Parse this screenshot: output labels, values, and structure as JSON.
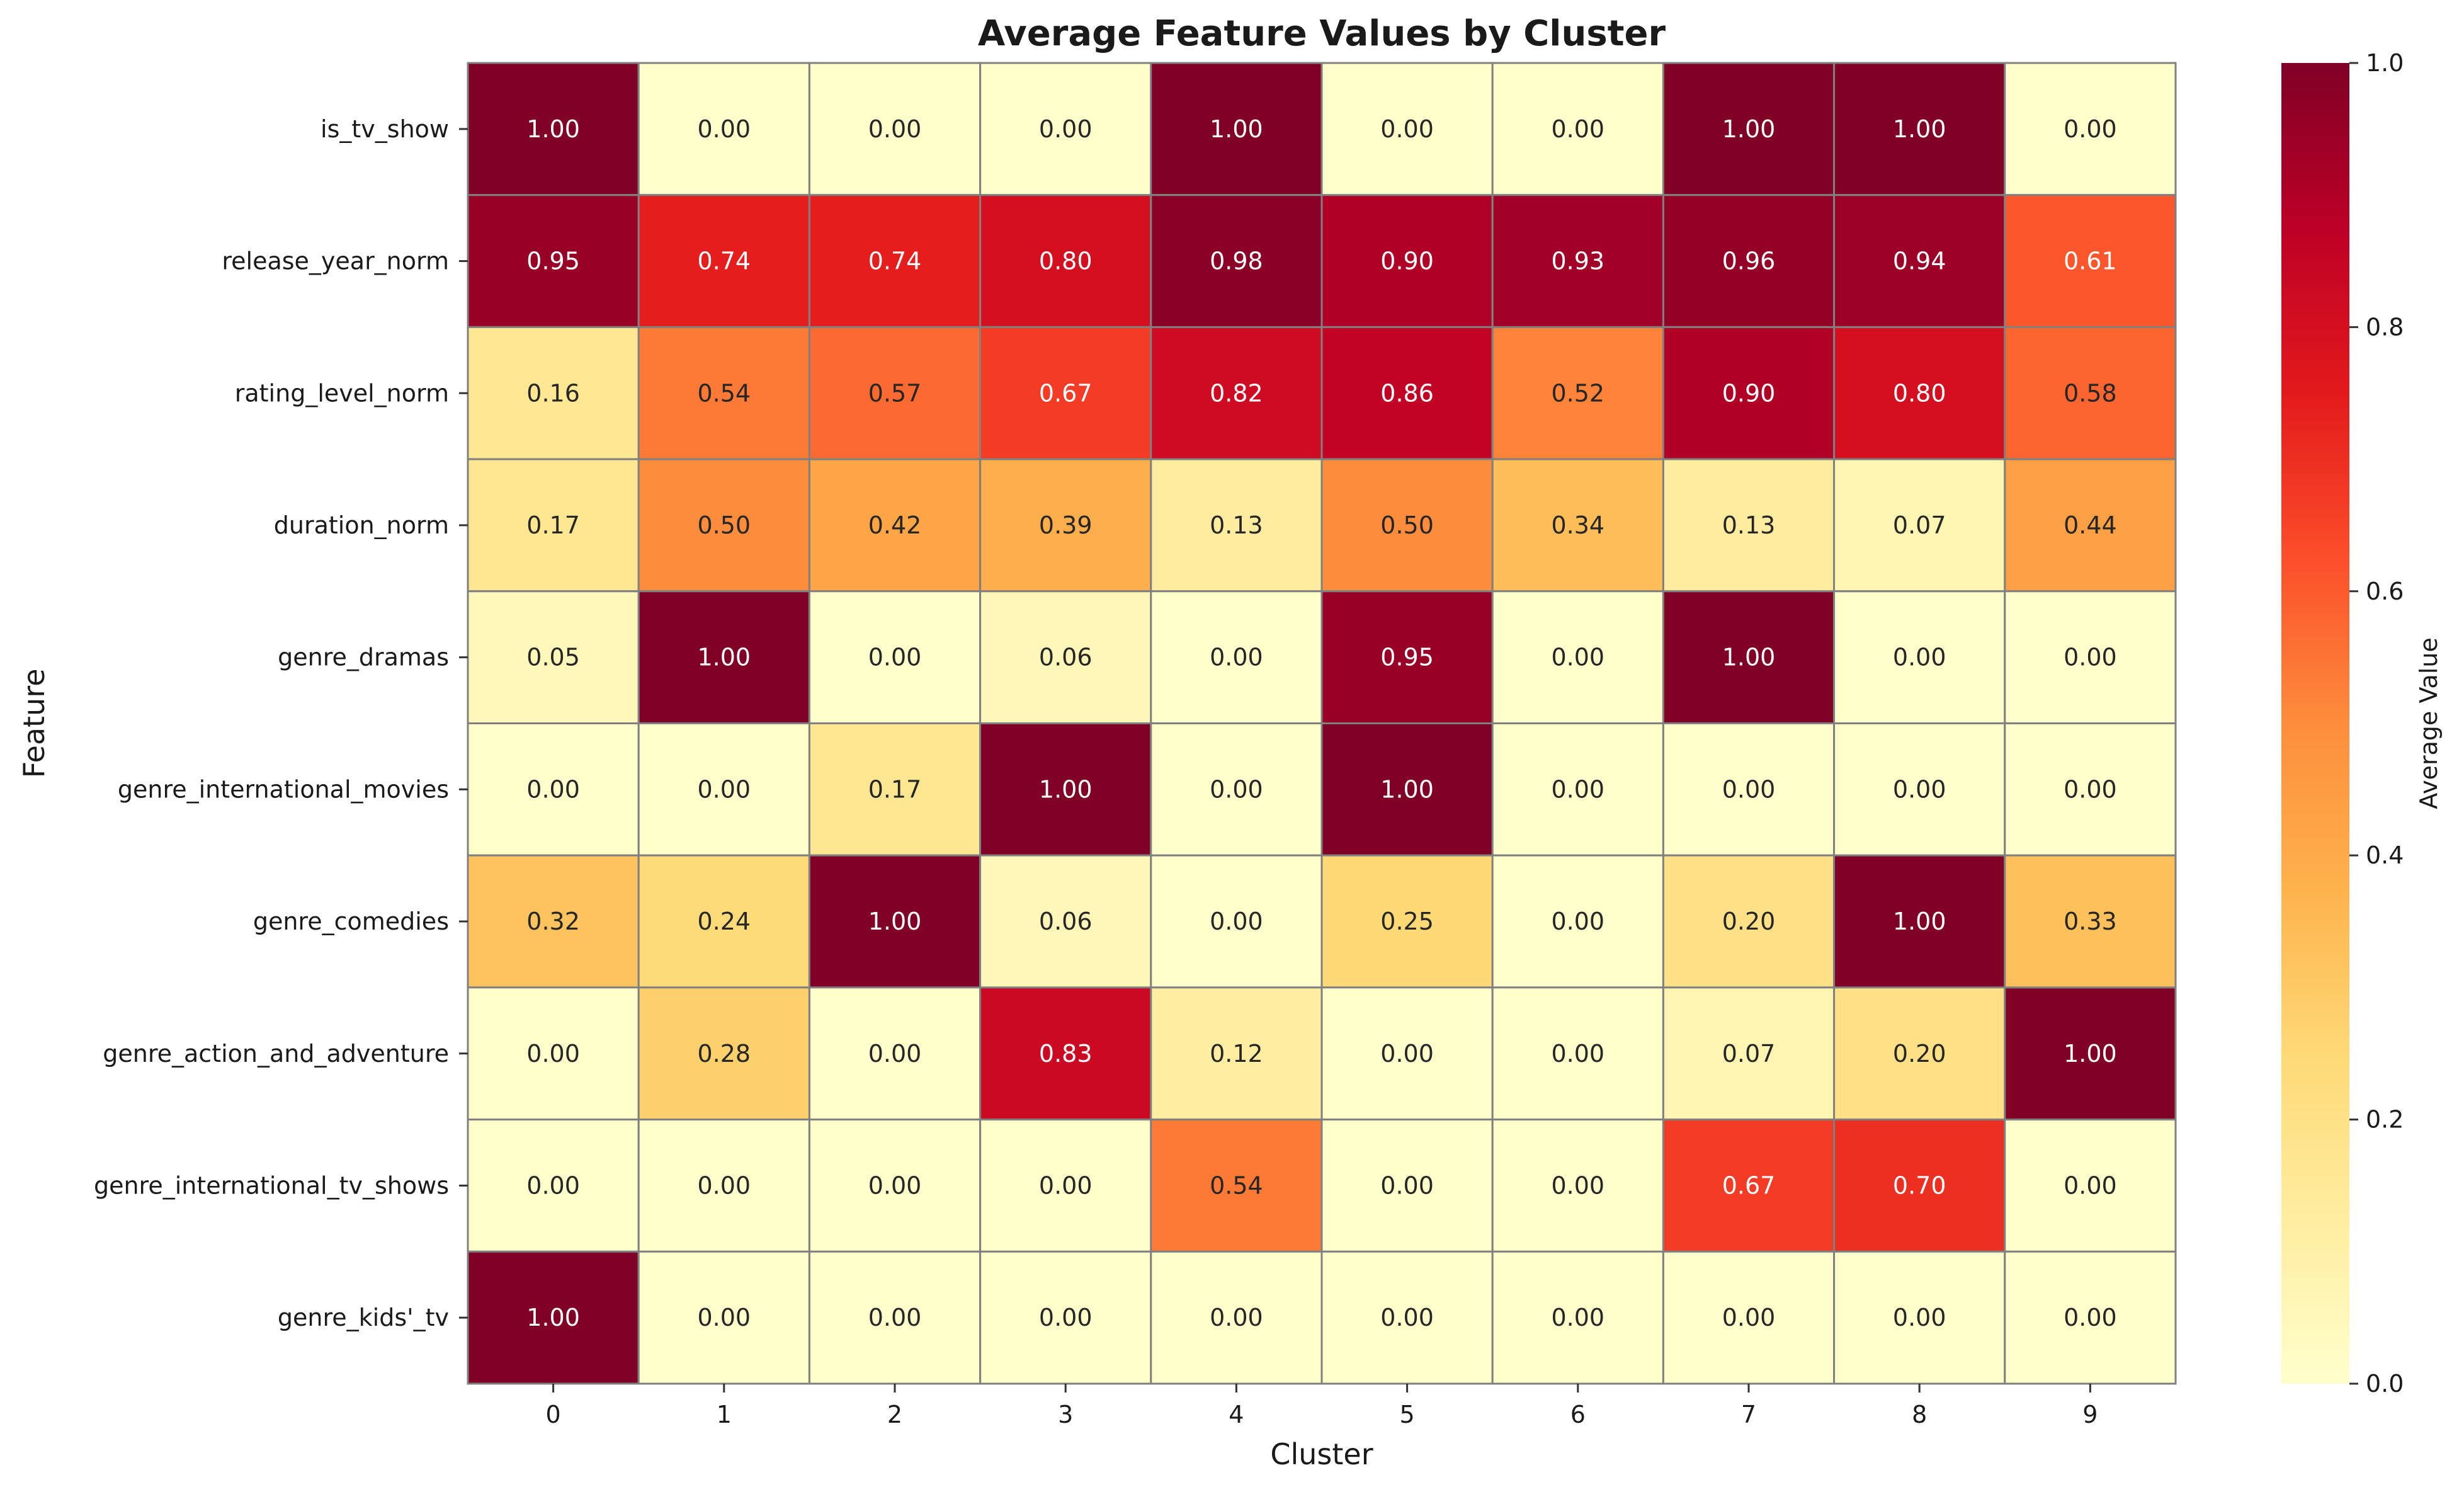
{
  "chart_data": {
    "type": "heatmap",
    "title": "Average Feature Values by Cluster",
    "xlabel": "Cluster",
    "ylabel": "Feature",
    "colorbar_label": "Average Value",
    "colormap": "YlOrRd",
    "color_range": [
      0,
      1
    ],
    "colorbar_ticks": [
      "0.0",
      "0.2",
      "0.4",
      "0.6",
      "0.8",
      "1.0"
    ],
    "colorbar_tick_values": [
      0,
      0.2,
      0.4,
      0.6,
      0.8,
      1.0
    ],
    "x_categories": [
      "0",
      "1",
      "2",
      "3",
      "4",
      "5",
      "6",
      "7",
      "8",
      "9"
    ],
    "y_categories": [
      "is_tv_show",
      "release_year_norm",
      "rating_level_norm",
      "duration_norm",
      "genre_dramas",
      "genre_international_movies",
      "genre_comedies",
      "genre_action_and_adventure",
      "genre_international_tv_shows",
      "genre_kids'_tv"
    ],
    "values": [
      [
        1.0,
        0.0,
        0.0,
        0.0,
        1.0,
        0.0,
        0.0,
        1.0,
        1.0,
        0.0
      ],
      [
        0.95,
        0.74,
        0.74,
        0.8,
        0.98,
        0.9,
        0.93,
        0.96,
        0.94,
        0.61
      ],
      [
        0.16,
        0.54,
        0.57,
        0.67,
        0.82,
        0.86,
        0.52,
        0.9,
        0.8,
        0.58
      ],
      [
        0.17,
        0.5,
        0.42,
        0.39,
        0.13,
        0.5,
        0.34,
        0.13,
        0.07,
        0.44
      ],
      [
        0.05,
        1.0,
        0.0,
        0.06,
        0.0,
        0.95,
        0.0,
        1.0,
        0.0,
        0.0
      ],
      [
        0.0,
        0.0,
        0.17,
        1.0,
        0.0,
        1.0,
        0.0,
        0.0,
        0.0,
        0.0
      ],
      [
        0.32,
        0.24,
        1.0,
        0.06,
        0.0,
        0.25,
        0.0,
        0.2,
        1.0,
        0.33
      ],
      [
        0.0,
        0.28,
        0.0,
        0.83,
        0.12,
        0.0,
        0.0,
        0.07,
        0.2,
        1.0
      ],
      [
        0.0,
        0.0,
        0.0,
        0.0,
        0.54,
        0.0,
        0.0,
        0.67,
        0.7,
        0.0
      ],
      [
        1.0,
        0.0,
        0.0,
        0.0,
        0.0,
        0.0,
        0.0,
        0.0,
        0.0,
        0.0
      ]
    ],
    "value_format": "2 decimals",
    "cell_border_color": "#808080"
  }
}
